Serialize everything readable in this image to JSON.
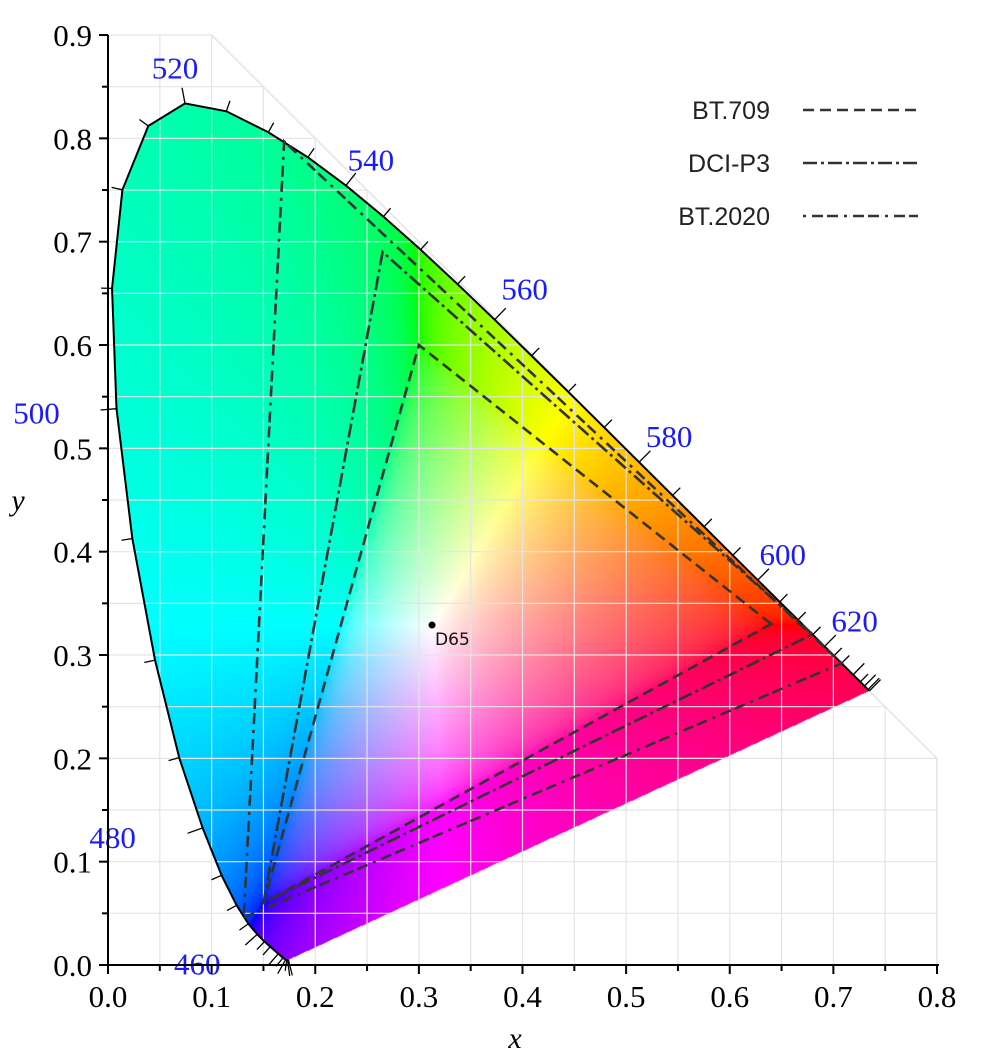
{
  "chart_data": {
    "type": "scatter",
    "title": "",
    "xlabel": "x",
    "ylabel": "y",
    "xlim": [
      0.0,
      0.8
    ],
    "ylim": [
      0.0,
      0.9
    ],
    "grid": true,
    "grid_step": 0.05,
    "x_ticks": [
      "0.0",
      "0.1",
      "0.2",
      "0.3",
      "0.4",
      "0.5",
      "0.6",
      "0.7",
      "0.8"
    ],
    "y_ticks": [
      "0.0",
      "0.1",
      "0.2",
      "0.3",
      "0.4",
      "0.5",
      "0.6",
      "0.7",
      "0.8",
      "0.9"
    ],
    "spectral_locus": [
      [
        380,
        0.1741,
        0.005
      ],
      [
        400,
        0.1733,
        0.0048
      ],
      [
        410,
        0.1726,
        0.0048
      ],
      [
        420,
        0.1714,
        0.0051
      ],
      [
        430,
        0.1689,
        0.0069
      ],
      [
        440,
        0.1644,
        0.0109
      ],
      [
        450,
        0.1566,
        0.0177
      ],
      [
        455,
        0.151,
        0.0227
      ],
      [
        460,
        0.144,
        0.0297
      ],
      [
        465,
        0.1355,
        0.0399
      ],
      [
        470,
        0.1241,
        0.0578
      ],
      [
        475,
        0.1096,
        0.0868
      ],
      [
        480,
        0.0913,
        0.1327
      ],
      [
        485,
        0.0687,
        0.2007
      ],
      [
        490,
        0.0454,
        0.295
      ],
      [
        495,
        0.0235,
        0.4127
      ],
      [
        500,
        0.0082,
        0.5384
      ],
      [
        505,
        0.0039,
        0.6548
      ],
      [
        510,
        0.0139,
        0.7502
      ],
      [
        515,
        0.0389,
        0.812
      ],
      [
        520,
        0.0743,
        0.8338
      ],
      [
        525,
        0.1142,
        0.8262
      ],
      [
        530,
        0.1547,
        0.8059
      ],
      [
        535,
        0.1929,
        0.7816
      ],
      [
        540,
        0.2296,
        0.7543
      ],
      [
        545,
        0.2658,
        0.7243
      ],
      [
        550,
        0.3016,
        0.6923
      ],
      [
        555,
        0.3373,
        0.6589
      ],
      [
        560,
        0.3731,
        0.6245
      ],
      [
        565,
        0.4087,
        0.5896
      ],
      [
        570,
        0.4441,
        0.5547
      ],
      [
        575,
        0.4788,
        0.5202
      ],
      [
        580,
        0.5125,
        0.4866
      ],
      [
        585,
        0.5448,
        0.4544
      ],
      [
        590,
        0.5752,
        0.4242
      ],
      [
        595,
        0.6029,
        0.3965
      ],
      [
        600,
        0.627,
        0.3725
      ],
      [
        605,
        0.6482,
        0.3514
      ],
      [
        610,
        0.6658,
        0.334
      ],
      [
        615,
        0.6801,
        0.3197
      ],
      [
        620,
        0.6915,
        0.3083
      ],
      [
        625,
        0.7006,
        0.2993
      ],
      [
        630,
        0.7079,
        0.292
      ],
      [
        640,
        0.719,
        0.2809
      ],
      [
        650,
        0.726,
        0.274
      ],
      [
        660,
        0.73,
        0.27
      ],
      [
        680,
        0.7334,
        0.2666
      ],
      [
        700,
        0.7347,
        0.2653
      ]
    ],
    "wavelength_labels": [
      {
        "text": "460",
        "nm": 460
      },
      {
        "text": "480",
        "nm": 480
      },
      {
        "text": "500",
        "nm": 500
      },
      {
        "text": "520",
        "nm": 520
      },
      {
        "text": "540",
        "nm": 540
      },
      {
        "text": "560",
        "nm": 560
      },
      {
        "text": "580",
        "nm": 580
      },
      {
        "text": "600",
        "nm": 600
      },
      {
        "text": "620",
        "nm": 620
      }
    ],
    "series": [
      {
        "name": "BT.709",
        "style": "dashed",
        "points": [
          [
            0.64,
            0.33
          ],
          [
            0.3,
            0.6
          ],
          [
            0.15,
            0.06
          ]
        ]
      },
      {
        "name": "DCI-P3",
        "style": "dash-dot",
        "points": [
          [
            0.68,
            0.32
          ],
          [
            0.265,
            0.69
          ],
          [
            0.15,
            0.06
          ]
        ]
      },
      {
        "name": "BT.2020",
        "style": "dot-dash-dash",
        "points": [
          [
            0.708,
            0.292
          ],
          [
            0.17,
            0.797
          ],
          [
            0.131,
            0.046
          ]
        ]
      }
    ],
    "white_point": {
      "name": "D65",
      "x": 0.3127,
      "y": 0.329
    },
    "legend_placement": "top-right",
    "colors": {
      "wavelength_label": "#1a1aff",
      "gamut_line": "#333333",
      "grid": "#e4e4e4"
    }
  }
}
